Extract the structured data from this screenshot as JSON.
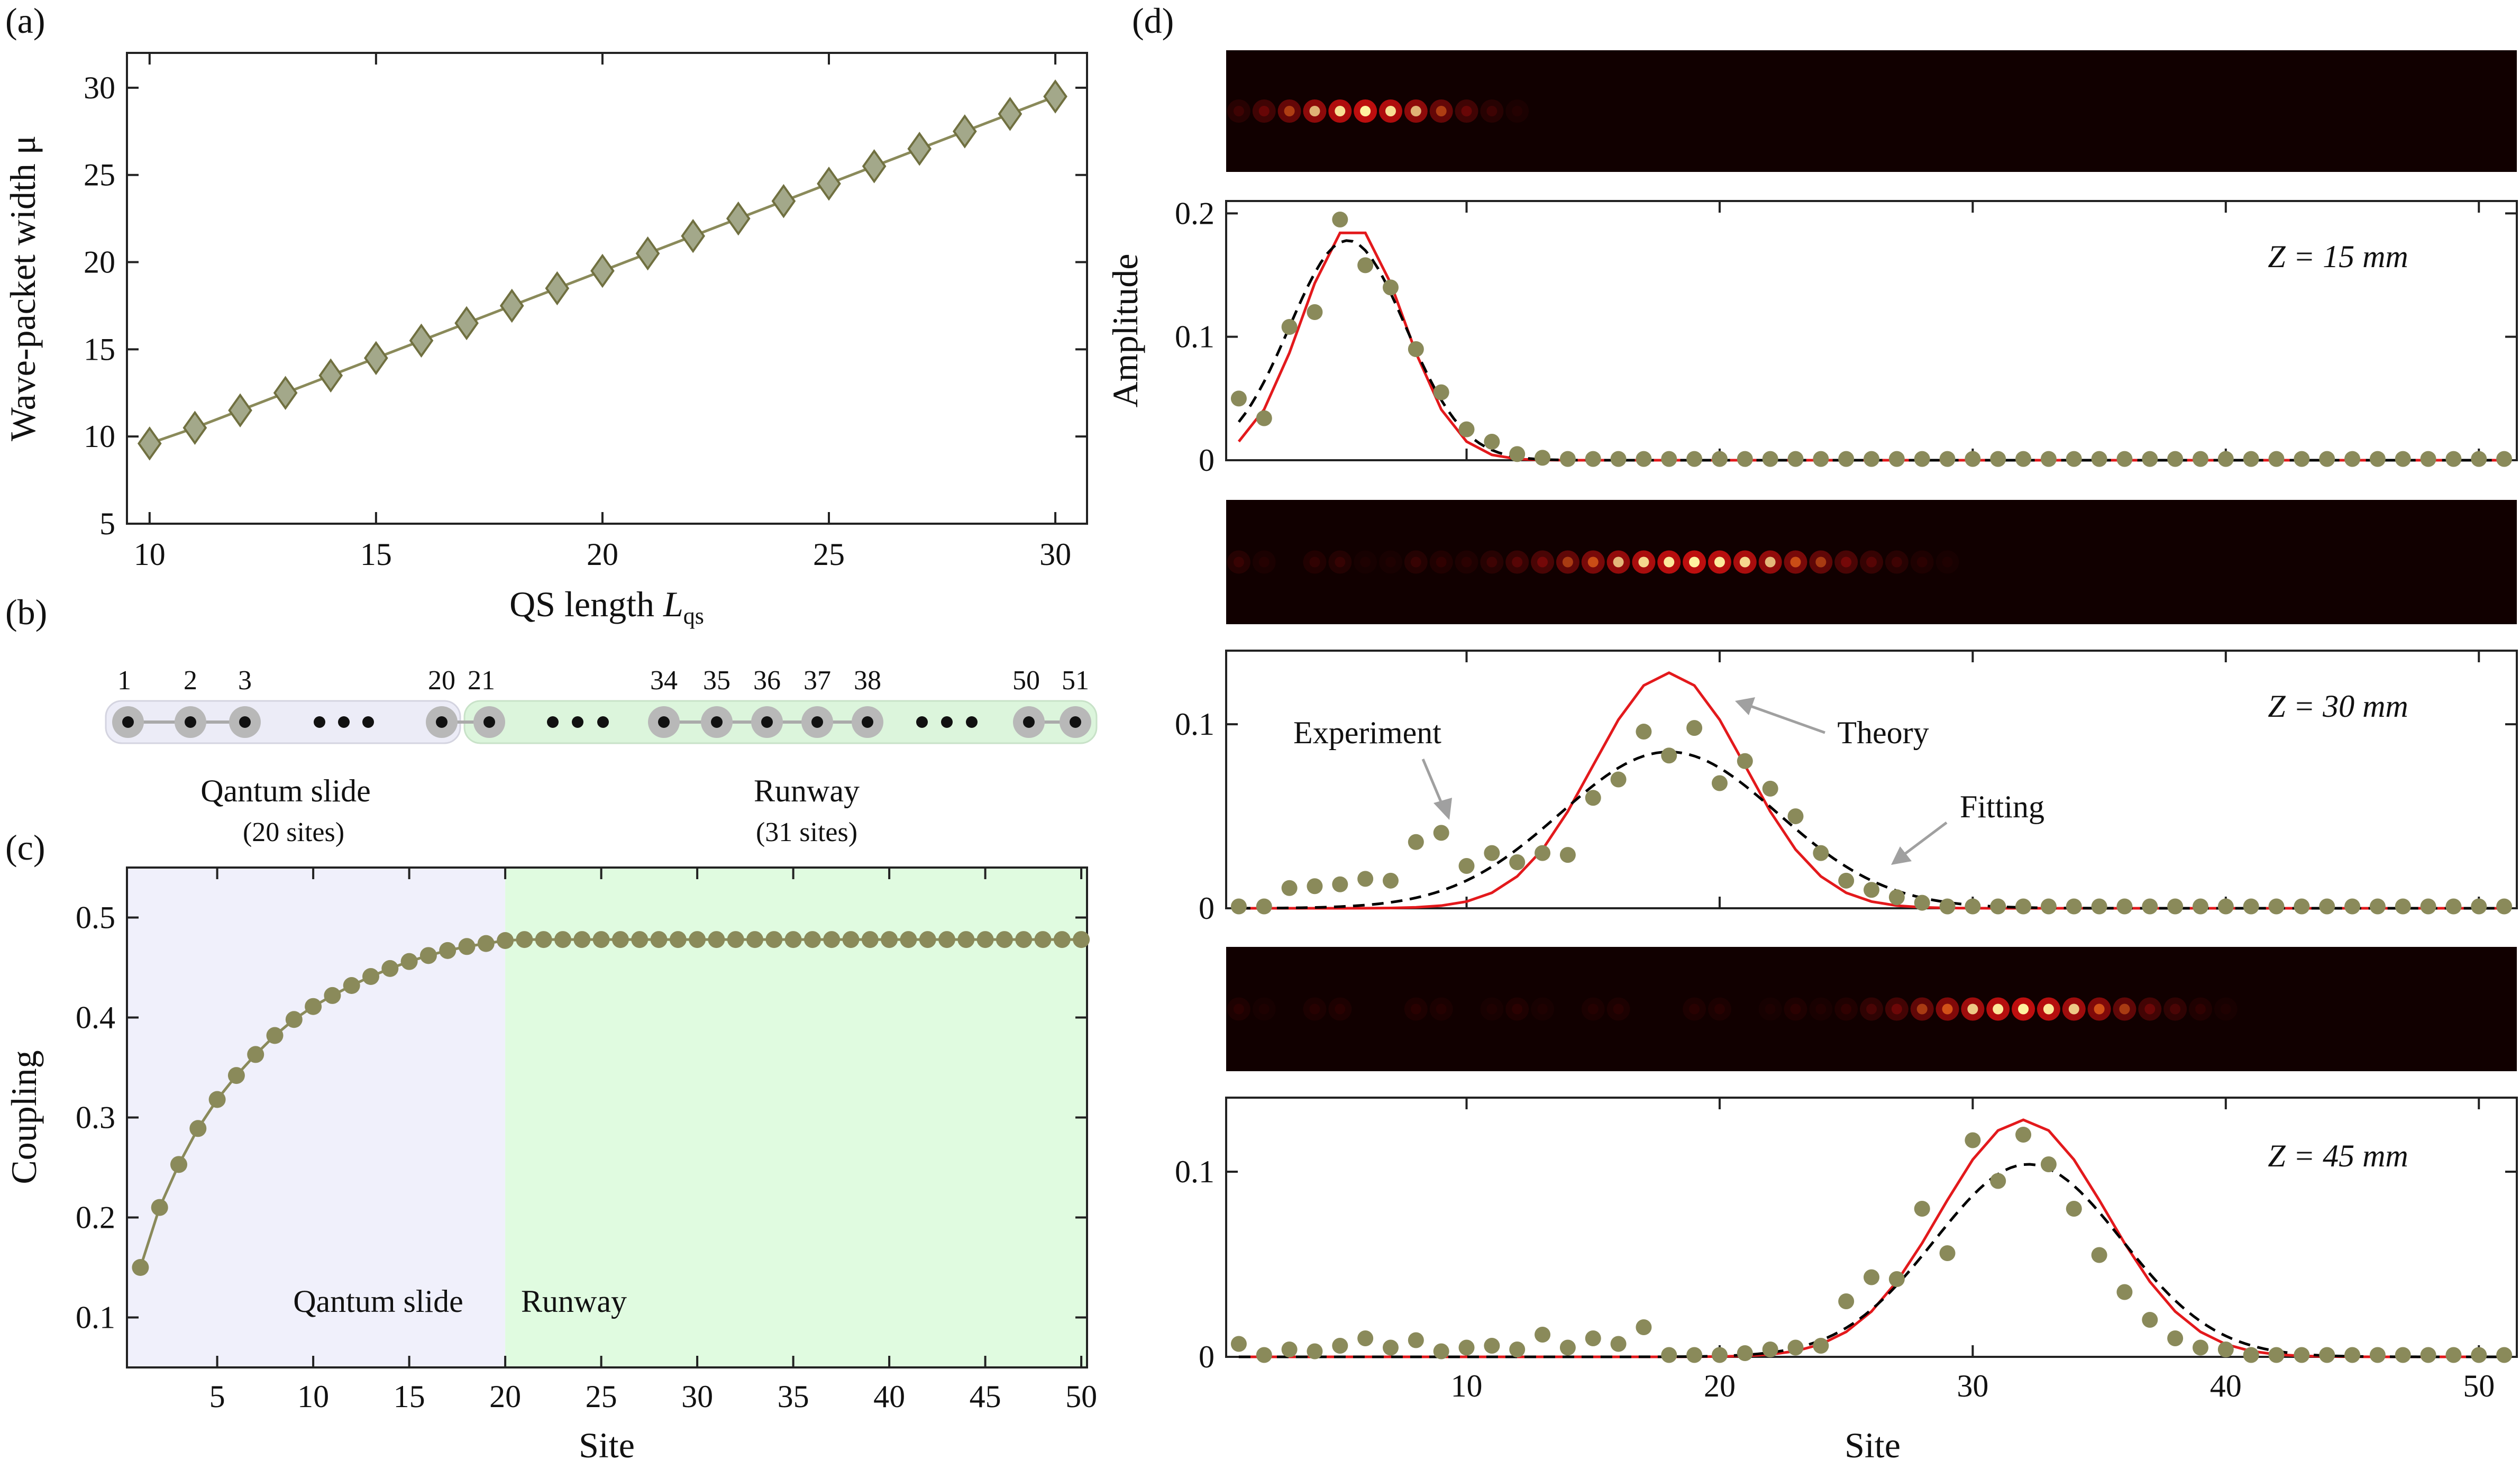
{
  "colors": {
    "marker": "#8a8a5a",
    "markerFill": "#a3a88a",
    "theory": "#e3191c",
    "fitting": "#000000",
    "qsShade": "#f0f0fb",
    "runwayShade": "#e0fbe0",
    "beamBg": "#110000",
    "annotArrow": "#a0a0a0"
  },
  "panels": {
    "a": "(a)",
    "b": "(b)",
    "c": "(c)",
    "d": "(d)"
  },
  "chart_data": [
    {
      "id": "a",
      "type": "line",
      "xlabel_main": "QS length ",
      "xlabel_sym": "L",
      "xlabel_sub": "qs",
      "ylabel": "Wave-packet width μ",
      "xlim": [
        9.5,
        30.7
      ],
      "ylim": [
        5,
        32
      ],
      "xticks": [
        10,
        15,
        20,
        25,
        30
      ],
      "yticks": [
        5,
        10,
        15,
        20,
        25,
        30
      ],
      "x": [
        10,
        11,
        12,
        13,
        14,
        15,
        16,
        17,
        18,
        19,
        20,
        21,
        22,
        23,
        24,
        25,
        26,
        27,
        28,
        29,
        30
      ],
      "y": [
        9.6,
        10.5,
        11.5,
        12.5,
        13.5,
        14.5,
        15.5,
        16.5,
        17.5,
        18.5,
        19.5,
        20.5,
        21.5,
        22.5,
        23.5,
        24.5,
        25.5,
        26.5,
        27.5,
        28.5,
        29.5
      ]
    },
    {
      "id": "b",
      "type": "diagram",
      "left_labels": [
        "1",
        "2",
        "3",
        "20"
      ],
      "right_labels": [
        "21",
        "34",
        "35",
        "36",
        "37",
        "38",
        "50",
        "51"
      ],
      "left_title": "Qantum slide",
      "left_sub": "(20 sites)",
      "right_title": "Runway",
      "right_sub": "(31 sites)"
    },
    {
      "id": "c",
      "type": "line",
      "xlabel": "Site",
      "ylabel": "Coupling",
      "xlim": [
        0.3,
        50.3
      ],
      "ylim": [
        0.05,
        0.55
      ],
      "xticks": [
        5,
        10,
        15,
        20,
        25,
        30,
        35,
        40,
        45,
        50
      ],
      "yticks": [
        0.1,
        0.2,
        0.3,
        0.4,
        0.5
      ],
      "ytick_labels": [
        "0.1",
        "0.2",
        "0.3",
        "0.4",
        "0.5"
      ],
      "region_split": 20,
      "region_labels": [
        "Qantum slide",
        "Runway"
      ],
      "x": [
        1,
        2,
        3,
        4,
        5,
        6,
        7,
        8,
        9,
        10,
        11,
        12,
        13,
        14,
        15,
        16,
        17,
        18,
        19,
        20,
        21,
        22,
        23,
        24,
        25,
        26,
        27,
        28,
        29,
        30,
        31,
        32,
        33,
        34,
        35,
        36,
        37,
        38,
        39,
        40,
        41,
        42,
        43,
        44,
        45,
        46,
        47,
        48,
        49,
        50
      ],
      "y": [
        0.15,
        0.21,
        0.253,
        0.289,
        0.318,
        0.342,
        0.363,
        0.382,
        0.398,
        0.411,
        0.422,
        0.432,
        0.441,
        0.449,
        0.456,
        0.462,
        0.467,
        0.471,
        0.474,
        0.477,
        0.478,
        0.478,
        0.478,
        0.478,
        0.478,
        0.478,
        0.478,
        0.478,
        0.478,
        0.478,
        0.478,
        0.478,
        0.478,
        0.478,
        0.478,
        0.478,
        0.478,
        0.478,
        0.478,
        0.478,
        0.478,
        0.478,
        0.478,
        0.478,
        0.478,
        0.478,
        0.478,
        0.478,
        0.478,
        0.478
      ]
    },
    {
      "id": "d1",
      "type": "scatter+line",
      "ylabel": "Amplitude",
      "annotation": "Z = 15 mm",
      "xlim": [
        0.5,
        51.5
      ],
      "ylim": [
        0,
        0.21
      ],
      "yticks": [
        0,
        0.1,
        0.2
      ],
      "ytick_labels": [
        "0",
        "0.1",
        "0.2"
      ],
      "experiment": [
        0.05,
        0.034,
        0.108,
        0.12,
        0.195,
        0.158,
        0.14,
        0.09,
        0.055,
        0.025,
        0.015,
        0.005,
        0.002,
        0.001,
        0.001,
        0.001,
        0.001,
        0.001,
        0.001,
        0.001,
        0.001,
        0.001,
        0.001,
        0.001,
        0.001,
        0.001,
        0.001,
        0.001,
        0.001,
        0.001,
        0.001,
        0.001,
        0.001,
        0.001,
        0.001,
        0.001,
        0.001,
        0.001,
        0.001,
        0.001,
        0.001,
        0.001,
        0.001,
        0.001,
        0.001,
        0.001,
        0.001,
        0.001,
        0.001,
        0.001,
        0.001
      ],
      "theory_center": 5.5,
      "theory_peak": 0.19,
      "theory_sigma": 2.0,
      "fit_center": 5.3,
      "fit_peak": 0.178,
      "fit_sigma": 2.3
    },
    {
      "id": "d2",
      "type": "scatter+line",
      "annotation": "Z = 30 mm",
      "xlim": [
        0.5,
        51.5
      ],
      "ylim": [
        0,
        0.14
      ],
      "yticks": [
        0,
        0.1
      ],
      "ytick_labels": [
        "0",
        "0.1"
      ],
      "experiment": [
        0.001,
        0.001,
        0.011,
        0.012,
        0.013,
        0.016,
        0.015,
        0.036,
        0.041,
        0.023,
        0.03,
        0.025,
        0.03,
        0.029,
        0.06,
        0.07,
        0.096,
        0.083,
        0.098,
        0.068,
        0.08,
        0.065,
        0.05,
        0.03,
        0.015,
        0.01,
        0.006,
        0.003,
        0.001,
        0.001,
        0.001,
        0.001,
        0.001,
        0.001,
        0.001,
        0.001,
        0.001,
        0.001,
        0.001,
        0.001,
        0.001,
        0.001,
        0.001,
        0.001,
        0.001,
        0.001,
        0.001,
        0.001,
        0.001,
        0.001,
        0.001
      ],
      "theory_center": 18,
      "theory_peak": 0.128,
      "theory_sigma": 3.0,
      "fit_center": 18.0,
      "fit_peak": 0.085,
      "fit_sigma": 4.3,
      "labels": {
        "experiment": "Experiment",
        "theory": "Theory",
        "fitting": "Fitting"
      }
    },
    {
      "id": "d3",
      "type": "scatter+line",
      "xlabel": "Site",
      "annotation": "Z = 45 mm",
      "xlim": [
        0.5,
        51.5
      ],
      "ylim": [
        0,
        0.14
      ],
      "yticks": [
        0,
        0.1
      ],
      "ytick_labels": [
        "0",
        "0.1"
      ],
      "xticks": [
        10,
        20,
        30,
        40,
        50
      ],
      "experiment": [
        0.007,
        0.001,
        0.004,
        0.003,
        0.006,
        0.01,
        0.005,
        0.009,
        0.003,
        0.005,
        0.006,
        0.004,
        0.012,
        0.005,
        0.01,
        0.007,
        0.016,
        0.001,
        0.001,
        0.001,
        0.002,
        0.004,
        0.005,
        0.006,
        0.03,
        0.043,
        0.042,
        0.08,
        0.056,
        0.117,
        0.095,
        0.12,
        0.104,
        0.08,
        0.055,
        0.035,
        0.02,
        0.01,
        0.005,
        0.004,
        0.001,
        0.001,
        0.001,
        0.001,
        0.001,
        0.001,
        0.001,
        0.001,
        0.001,
        0.001,
        0.001
      ],
      "theory_center": 32,
      "theory_peak": 0.128,
      "theory_sigma": 3.3,
      "fit_center": 32.2,
      "fit_peak": 0.104,
      "fit_sigma": 3.7
    }
  ],
  "beams": [
    {
      "center": 6,
      "spread": 2.5,
      "tail": 0.0
    },
    {
      "center": 19,
      "spread": 4.0,
      "tail": 0.12
    },
    {
      "center": 32,
      "spread": 3.2,
      "tail": 0.08
    }
  ]
}
